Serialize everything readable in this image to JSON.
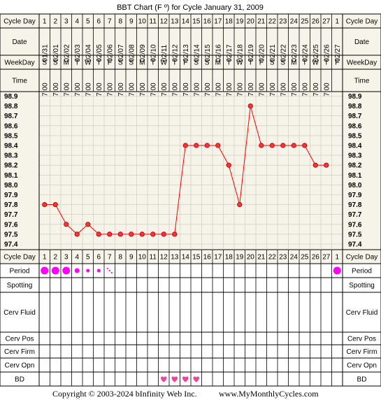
{
  "chart_title": "BBT Chart (F º) for Cycle January 31, 2009",
  "row_labels": {
    "cycle_day": "Cycle Day",
    "date": "Date",
    "weekday": "WeekDay",
    "time": "Time",
    "period": "Period",
    "spotting": "Spotting",
    "cerv_fluid": "Cerv Fluid",
    "cerv_pos": "Cerv Pos",
    "cerv_firm": "Cerv Firm",
    "cerv_opn": "Cerv Opn",
    "bd": "BD"
  },
  "footer": {
    "copyright": "Copyright © 2003-2024 bInfinity Web Inc.",
    "site": "www.MyMonthlyCycles.com"
  },
  "colors": {
    "grid_bg": "#f6f3e8",
    "header_bg": "#f6f3e8",
    "line": "#ff0000",
    "marker_fill": "#ff3333",
    "period": "#ff00ff",
    "heart": "#ee4499"
  },
  "chart_data": {
    "type": "line",
    "title": "BBT Chart (F º) for Cycle January 31, 2009",
    "cycle_days": [
      "1",
      "2",
      "3",
      "4",
      "5",
      "6",
      "7",
      "8",
      "9",
      "10",
      "11",
      "12",
      "13",
      "14",
      "15",
      "16",
      "17",
      "18",
      "19",
      "20",
      "21",
      "22",
      "23",
      "24",
      "25",
      "26",
      "27",
      "1"
    ],
    "dates": [
      "01/31",
      "02/01",
      "02/02",
      "02/03",
      "02/04",
      "02/05",
      "02/06",
      "02/07",
      "02/08",
      "02/09",
      "02/10",
      "02/11",
      "02/12",
      "02/13",
      "02/14",
      "02/15",
      "02/16",
      "02/17",
      "02/18",
      "02/19",
      "02/20",
      "02/21",
      "02/22",
      "02/23",
      "02/24",
      "02/25",
      "02/26",
      "02/27"
    ],
    "weekdays": [
      "S",
      "S",
      "M",
      "T",
      "W",
      "T",
      "F",
      "S",
      "S",
      "M",
      "T",
      "W",
      "T",
      "F",
      "S",
      "S",
      "M",
      "T",
      "W",
      "T",
      "F",
      "S",
      "S",
      "M",
      "T",
      "W",
      "T",
      "F"
    ],
    "times": [
      "7:00",
      "7:00",
      "7:00",
      "7:00",
      "7:00",
      "7:00",
      "7:00",
      "7:00",
      "7:00",
      "7:00",
      "7:00",
      "7:00",
      "7:00",
      "7:00",
      "7:00",
      "7:00",
      "7:00",
      "7:00",
      "7:00",
      "7:00",
      "7:00",
      "7:00",
      "7:00",
      "7:00",
      "7:00",
      "7:00",
      "7:00",
      ""
    ],
    "temperatures": [
      97.8,
      97.8,
      97.6,
      97.5,
      97.6,
      97.5,
      97.5,
      97.5,
      97.5,
      97.5,
      97.5,
      97.5,
      97.5,
      98.4,
      98.4,
      98.4,
      98.4,
      98.2,
      97.8,
      98.8,
      98.4,
      98.4,
      98.4,
      98.4,
      98.4,
      98.2,
      98.2,
      null
    ],
    "y_ticks": [
      "98.9",
      "98.8",
      "98.7",
      "98.6",
      "98.5",
      "98.4",
      "98.3",
      "98.2",
      "98.1",
      "98.0",
      "97.9",
      "97.8",
      "97.7",
      "97.6",
      "97.5",
      "97.4"
    ],
    "ylim": [
      97.4,
      98.9
    ],
    "period": [
      "heavy",
      "heavy",
      "heavy",
      "medium",
      "light",
      "light",
      "spotting",
      "",
      "",
      "",
      "",
      "",
      "",
      "",
      "",
      "",
      "",
      "",
      "",
      "",
      "",
      "",
      "",
      "",
      "",
      "",
      "",
      "heavy"
    ],
    "bd": [
      false,
      false,
      false,
      false,
      false,
      false,
      false,
      false,
      false,
      false,
      false,
      true,
      true,
      true,
      true,
      false,
      false,
      false,
      false,
      false,
      false,
      false,
      false,
      false,
      false,
      false,
      false,
      false
    ]
  }
}
